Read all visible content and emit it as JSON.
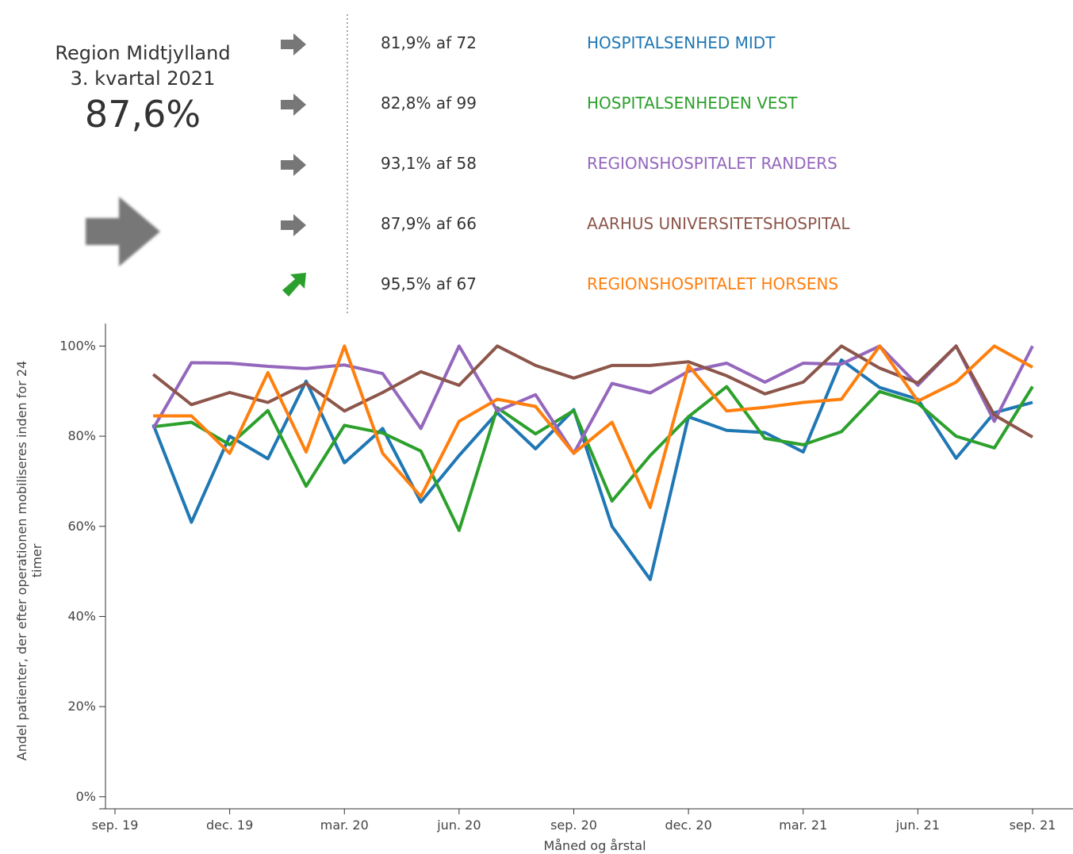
{
  "summary": {
    "region": "Region Midtjylland",
    "period": "3. kvartal 2021",
    "result": "87,6%"
  },
  "units": [
    {
      "result": "81,9% af 72"
    },
    {
      "result": "82,8% af 99"
    },
    {
      "result": "93,1% af 58"
    },
    {
      "result": "87,9% af 66"
    },
    {
      "result": "95,5% af 67"
    }
  ],
  "chart_data": {
    "type": "line",
    "y_label": "Andel patienter, der efter operationen mobiliseres inden for 24 timer",
    "x_label": "Måned og årstal",
    "x": [
      "2019-10",
      "2019-11",
      "2019-12",
      "2020-01",
      "2020-02",
      "2020-03",
      "2020-04",
      "2020-05",
      "2020-06",
      "2020-07",
      "2020-08",
      "2020-09",
      "2020-10",
      "2020-11",
      "2020-12",
      "2021-01",
      "2021-02",
      "2021-03",
      "2021-04",
      "2021-05",
      "2021-06",
      "2021-07",
      "2021-08",
      "2021-09"
    ],
    "xlim": [
      "2019-09",
      "2021-09"
    ],
    "xticks": [
      {
        "value": "2019-09",
        "label": "sep. 19"
      },
      {
        "value": "2019-12",
        "label": "dec. 19"
      },
      {
        "value": "2020-03",
        "label": "mar. 20"
      },
      {
        "value": "2020-06",
        "label": "jun. 20"
      },
      {
        "value": "2020-09",
        "label": "sep. 20"
      },
      {
        "value": "2020-12",
        "label": "dec. 20"
      },
      {
        "value": "2021-03",
        "label": "mar. 21"
      },
      {
        "value": "2021-06",
        "label": "jun. 21"
      },
      {
        "value": "2021-09",
        "label": "sep. 21"
      }
    ],
    "ylim": [
      -1.8,
      105
    ],
    "yticks": [
      {
        "value": 0,
        "label": "0%"
      },
      {
        "value": 20,
        "label": "20%"
      },
      {
        "value": 40,
        "label": "40%"
      },
      {
        "value": 60,
        "label": "60%"
      },
      {
        "value": 80,
        "label": "80%"
      },
      {
        "value": 100,
        "label": "100%"
      }
    ],
    "series": [
      {
        "name": "HOSPITALSENHED MIDT",
        "color": "#1f77b4",
        "values": [
          82.6,
          60.9,
          80,
          75,
          92.2,
          74.1,
          81.7,
          65.4,
          75.7,
          85.2,
          77.2,
          85.9,
          60,
          48.2,
          84.3,
          81.3,
          80.8,
          76.5,
          96.9,
          90.8,
          88.2,
          75.1,
          85.2,
          87.5
        ]
      },
      {
        "name": "HOSPITALSENHEDEN VEST",
        "color": "#2ca02c",
        "values": [
          82.1,
          83.1,
          78.1,
          85.7,
          68.9,
          82.4,
          80.7,
          76.7,
          59.1,
          86.3,
          80.5,
          85.7,
          65.6,
          75.7,
          84.3,
          91,
          79.5,
          78.1,
          81,
          89.9,
          87.3,
          80,
          77.4,
          91
        ]
      },
      {
        "name": "REGIONSHOSPITALET RANDERS",
        "color": "#9467bd",
        "values": [
          81.7,
          96.3,
          96.2,
          95.5,
          95,
          95.8,
          93.9,
          81.7,
          100,
          85.6,
          89.2,
          76.2,
          91.7,
          89.6,
          94.4,
          96.2,
          92,
          96.2,
          96,
          100,
          91.3,
          100,
          83.3,
          100
        ]
      },
      {
        "name": "AARHUS UNIVERSITETSHOSPITAL",
        "color": "#8c564b",
        "values": [
          93.7,
          87,
          89.7,
          87.5,
          91.7,
          85.6,
          89.7,
          94.3,
          91.3,
          100,
          95.7,
          92.9,
          95.7,
          95.7,
          96.5,
          93.4,
          89.4,
          92,
          100,
          95.1,
          91.8,
          100,
          84.7,
          79.8
        ]
      },
      {
        "name": "REGIONSHOSPITALET HORSENS",
        "color": "#ff7f0e",
        "values": [
          84.5,
          84.5,
          76.2,
          94.1,
          76.5,
          100,
          76.2,
          66.6,
          83.3,
          88.2,
          86.6,
          76.2,
          83.1,
          64.2,
          95.7,
          85.6,
          86.4,
          87.5,
          88.2,
          100,
          87.8,
          92,
          100,
          95.3
        ]
      }
    ]
  }
}
